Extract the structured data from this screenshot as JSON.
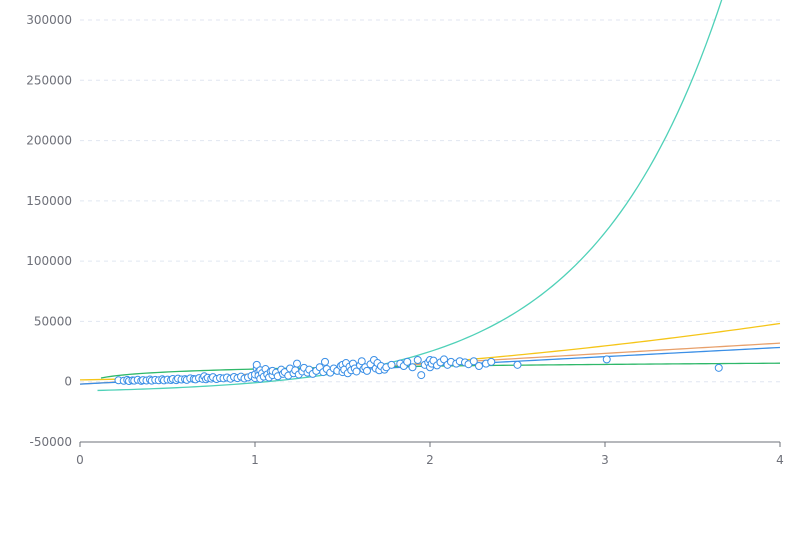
{
  "chart_data": {
    "type": "scatter",
    "title": "",
    "xlabel": "",
    "ylabel": "",
    "xlim": [
      0,
      4
    ],
    "ylim": [
      -50000,
      300000
    ],
    "x_ticks": [
      "0",
      "1",
      "2",
      "3",
      "4"
    ],
    "y_ticks": [
      "-50000",
      "0",
      "50000",
      "100000",
      "150000",
      "200000",
      "250000",
      "300000"
    ],
    "grid": "horizontal dashed",
    "legend": "none",
    "colors": {
      "scatter": "#3b8fe6",
      "exponential": "#4fd1b8",
      "polynomial": "#f5c518",
      "logarithmic": "#e8a06b",
      "linear": "#3b8fe6",
      "green": "#2fb86a",
      "axis": "#6e7079",
      "grid": "#e0e6f1"
    },
    "series": [
      {
        "type": "scatter",
        "points": [
          [
            0.22,
            1200
          ],
          [
            0.25,
            800
          ],
          [
            0.27,
            1500
          ],
          [
            0.28,
            600
          ],
          [
            0.3,
            1100
          ],
          [
            0.31,
            900
          ],
          [
            0.33,
            1600
          ],
          [
            0.35,
            700
          ],
          [
            0.36,
            1300
          ],
          [
            0.38,
            1000
          ],
          [
            0.4,
            1800
          ],
          [
            0.41,
            900
          ],
          [
            0.43,
            1500
          ],
          [
            0.45,
            1200
          ],
          [
            0.47,
            2000
          ],
          [
            0.48,
            1100
          ],
          [
            0.5,
            1700
          ],
          [
            0.52,
            1400
          ],
          [
            0.53,
            2300
          ],
          [
            0.55,
            1300
          ],
          [
            0.56,
            2600
          ],
          [
            0.58,
            1800
          ],
          [
            0.6,
            2100
          ],
          [
            0.61,
            1500
          ],
          [
            0.63,
            2800
          ],
          [
            0.65,
            2200
          ],
          [
            0.66,
            1900
          ],
          [
            0.68,
            3000
          ],
          [
            0.7,
            2400
          ],
          [
            0.71,
            4500
          ],
          [
            0.72,
            2000
          ],
          [
            0.73,
            3300
          ],
          [
            0.75,
            2600
          ],
          [
            0.76,
            3800
          ],
          [
            0.78,
            2200
          ],
          [
            0.8,
            3100
          ],
          [
            0.82,
            2800
          ],
          [
            0.84,
            3500
          ],
          [
            0.86,
            2500
          ],
          [
            0.88,
            3900
          ],
          [
            0.9,
            3000
          ],
          [
            0.92,
            4200
          ],
          [
            0.94,
            2700
          ],
          [
            0.96,
            3600
          ],
          [
            0.98,
            4800
          ],
          [
            1.0,
            3000
          ],
          [
            1.0,
            6000
          ],
          [
            1.01,
            11000
          ],
          [
            1.01,
            14000
          ],
          [
            1.02,
            8000
          ],
          [
            1.02,
            5000
          ],
          [
            1.03,
            9500
          ],
          [
            1.03,
            2500
          ],
          [
            1.04,
            7000
          ],
          [
            1.05,
            4200
          ],
          [
            1.06,
            10500
          ],
          [
            1.07,
            6000
          ],
          [
            1.08,
            3500
          ],
          [
            1.09,
            8500
          ],
          [
            1.1,
            5500
          ],
          [
            1.1,
            9000
          ],
          [
            1.12,
            7500
          ],
          [
            1.13,
            4500
          ],
          [
            1.15,
            10000
          ],
          [
            1.16,
            6500
          ],
          [
            1.17,
            8000
          ],
          [
            1.19,
            5000
          ],
          [
            1.2,
            11000
          ],
          [
            1.22,
            7000
          ],
          [
            1.23,
            9500
          ],
          [
            1.24,
            15000
          ],
          [
            1.25,
            6000
          ],
          [
            1.27,
            8500
          ],
          [
            1.28,
            11500
          ],
          [
            1.3,
            7500
          ],
          [
            1.31,
            10000
          ],
          [
            1.33,
            6500
          ],
          [
            1.35,
            9000
          ],
          [
            1.37,
            12000
          ],
          [
            1.39,
            8000
          ],
          [
            1.4,
            16500
          ],
          [
            1.41,
            10500
          ],
          [
            1.43,
            7500
          ],
          [
            1.45,
            11000
          ],
          [
            1.47,
            9000
          ],
          [
            1.49,
            13000
          ],
          [
            1.5,
            8000
          ],
          [
            1.5,
            14000
          ],
          [
            1.51,
            10000
          ],
          [
            1.52,
            15500
          ],
          [
            1.53,
            7000
          ],
          [
            1.54,
            12500
          ],
          [
            1.55,
            9500
          ],
          [
            1.56,
            15000
          ],
          [
            1.57,
            11000
          ],
          [
            1.58,
            8500
          ],
          [
            1.6,
            13500
          ],
          [
            1.61,
            17000
          ],
          [
            1.62,
            10500
          ],
          [
            1.63,
            12000
          ],
          [
            1.64,
            9000
          ],
          [
            1.66,
            14500
          ],
          [
            1.68,
            18000
          ],
          [
            1.69,
            11000
          ],
          [
            1.7,
            15500
          ],
          [
            1.71,
            9500
          ],
          [
            1.72,
            13000
          ],
          [
            1.74,
            10000
          ],
          [
            1.75,
            12000
          ],
          [
            1.78,
            14000
          ],
          [
            1.83,
            15000
          ],
          [
            1.85,
            13000
          ],
          [
            1.87,
            16500
          ],
          [
            1.9,
            12000
          ],
          [
            1.93,
            18000
          ],
          [
            1.95,
            5500
          ],
          [
            1.97,
            14000
          ],
          [
            1.99,
            16000
          ],
          [
            2.0,
            12000
          ],
          [
            2.0,
            18000
          ],
          [
            2.01,
            15000
          ],
          [
            2.02,
            17500
          ],
          [
            2.04,
            13500
          ],
          [
            2.06,
            16000
          ],
          [
            2.08,
            18500
          ],
          [
            2.1,
            14000
          ],
          [
            2.12,
            16500
          ],
          [
            2.15,
            15000
          ],
          [
            2.17,
            17000
          ],
          [
            2.2,
            16000
          ],
          [
            2.22,
            14500
          ],
          [
            2.25,
            17000
          ],
          [
            2.28,
            13000
          ],
          [
            2.32,
            15000
          ],
          [
            2.35,
            16500
          ],
          [
            2.5,
            14000
          ],
          [
            3.01,
            18500
          ],
          [
            3.65,
            11500
          ]
        ]
      },
      {
        "type": "curve",
        "name": "",
        "fit": "exponential",
        "x": [
          0.1,
          4.0
        ],
        "params": {
          "a": -10000,
          "b": 2400,
          "c": 1.34
        }
      },
      {
        "type": "curve",
        "name": "",
        "fit": "polynomial",
        "x": [
          0.0,
          4.0
        ],
        "params": {
          "c0": 1500,
          "c1": 2500,
          "c2": 2300
        }
      },
      {
        "type": "curve",
        "name": "",
        "fit": "linear",
        "x": [
          0.0,
          4.0
        ],
        "params": {
          "m": 8500,
          "b": -2000
        }
      },
      {
        "type": "curve",
        "name": "",
        "fit": "linear",
        "x": [
          0.0,
          4.0
        ],
        "params": {
          "m": 7600,
          "b": -2000
        }
      },
      {
        "type": "curve",
        "name": "",
        "fit": "logarithmic",
        "x": [
          0.12,
          4.0
        ],
        "params": {
          "a": 10500,
          "b": 3500
        }
      }
    ]
  }
}
